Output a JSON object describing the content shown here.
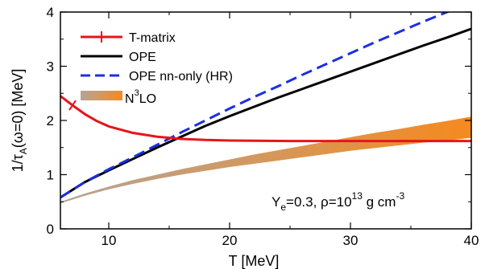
{
  "chart_data": {
    "type": "line",
    "xlabel": "T [MeV]",
    "ylabel_parts": {
      "main": "1/τ",
      "sub": "A",
      "rest": "(ω=0) [MeV]"
    },
    "xlim": [
      6,
      40
    ],
    "ylim": [
      0,
      4
    ],
    "x_ticks": [
      10,
      20,
      30,
      40
    ],
    "y_ticks": [
      0,
      1,
      2,
      3,
      4
    ],
    "x_tick_labels": [
      "10",
      "20",
      "30",
      "40"
    ],
    "y_tick_labels": [
      "0",
      "1",
      "2",
      "3",
      "4"
    ],
    "legend_position": "top-left",
    "annotation": {
      "y": "Y",
      "y_sub": "e",
      "mid": "=0.3, ρ=10",
      "exp": "13",
      "unit": " g cm",
      "unit_exp": "-3"
    },
    "series": [
      {
        "name": "T-matrix",
        "style": "solid",
        "color": "#e8141a",
        "marker_x": 7,
        "x": [
          6,
          7,
          8,
          9,
          10,
          12,
          14,
          16,
          18,
          20,
          25,
          30,
          35,
          40
        ],
        "y": [
          2.45,
          2.28,
          2.12,
          1.99,
          1.89,
          1.77,
          1.7,
          1.66,
          1.64,
          1.63,
          1.62,
          1.62,
          1.62,
          1.62
        ]
      },
      {
        "name": "OPE",
        "style": "solid",
        "color": "#000000",
        "x": [
          6,
          8,
          10,
          12,
          14,
          16,
          18,
          20,
          22,
          24,
          26,
          28,
          30,
          32,
          34,
          36,
          38,
          40
        ],
        "y": [
          0.58,
          0.86,
          1.08,
          1.29,
          1.5,
          1.7,
          1.9,
          2.08,
          2.25,
          2.42,
          2.58,
          2.74,
          2.9,
          3.06,
          3.22,
          3.38,
          3.53,
          3.69
        ]
      },
      {
        "name": "OPE nn-only (HR)",
        "style": "dashed",
        "color": "#1d2fe0",
        "x": [
          6,
          8,
          10,
          12,
          14,
          16,
          18,
          20,
          22,
          24,
          26,
          28,
          30,
          32,
          34,
          36,
          38,
          40
        ],
        "y": [
          0.58,
          0.86,
          1.1,
          1.32,
          1.55,
          1.78,
          2.0,
          2.22,
          2.43,
          2.63,
          2.84,
          3.04,
          3.24,
          3.44,
          3.63,
          3.82,
          4.0,
          4.18
        ]
      },
      {
        "name_parts": {
          "base": "N",
          "sup": "3",
          "rest": "LO"
        },
        "style": "band",
        "color_start": "#b5a496",
        "color_end": "#f58a1f",
        "x": [
          6,
          8,
          10,
          12,
          14,
          16,
          18,
          20,
          22,
          24,
          26,
          28,
          30,
          32,
          34,
          36,
          38,
          40
        ],
        "lower": [
          0.47,
          0.61,
          0.73,
          0.83,
          0.92,
          1.0,
          1.07,
          1.14,
          1.2,
          1.26,
          1.32,
          1.38,
          1.44,
          1.49,
          1.54,
          1.59,
          1.63,
          1.68
        ],
        "upper": [
          0.5,
          0.65,
          0.78,
          0.9,
          1.0,
          1.1,
          1.19,
          1.28,
          1.37,
          1.45,
          1.53,
          1.61,
          1.69,
          1.77,
          1.84,
          1.92,
          1.99,
          2.07
        ]
      }
    ]
  }
}
